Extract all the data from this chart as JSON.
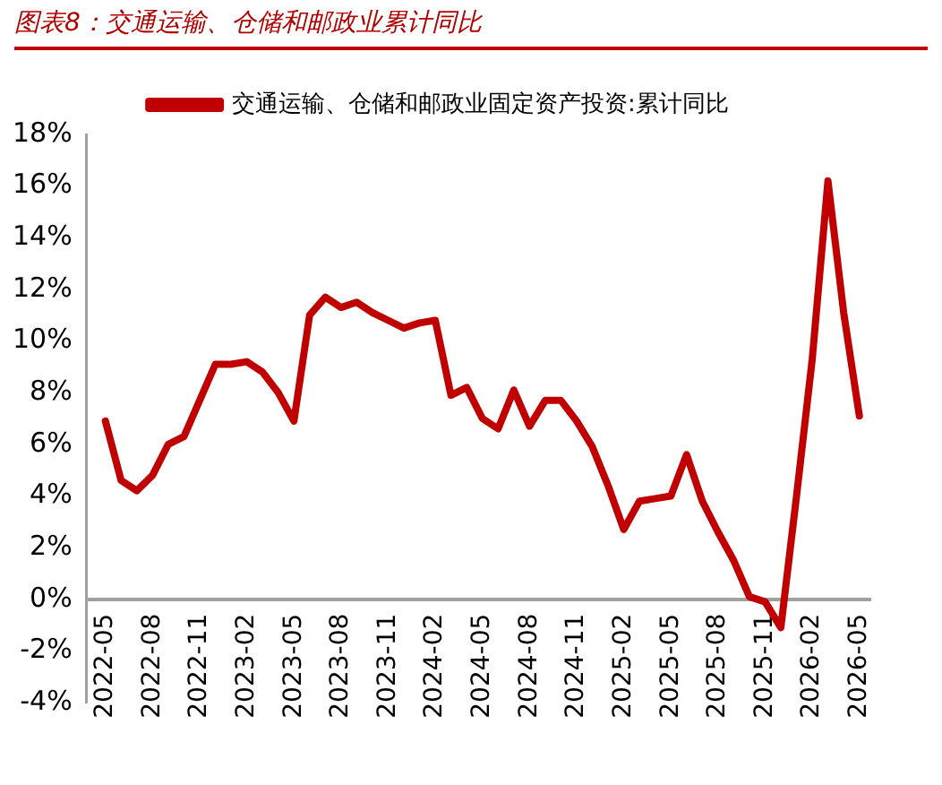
{
  "chart_data": {
    "type": "line",
    "title": "图表8：交通运输、仓储和邮政业累计同比",
    "categories": [
      "2022-05",
      null,
      null,
      "2022-08",
      null,
      null,
      "2022-11",
      null,
      null,
      "2023-02",
      null,
      null,
      "2023-05",
      null,
      null,
      "2023-08",
      null,
      null,
      "2023-11",
      null,
      null,
      "2024-02",
      null,
      null,
      "2024-05",
      null,
      null,
      "2024-08",
      null,
      null,
      "2024-11",
      null,
      null,
      "2025-02",
      null,
      null,
      "2025-05",
      null,
      null,
      "2025-08",
      null,
      null,
      "2025-11",
      null,
      null,
      "2026-02",
      null,
      null,
      "2026-05"
    ],
    "series": [
      {
        "name": "交通运输、仓储和邮政业固定资产投资:累计同比",
        "color": "#c00000",
        "values": [
          6.9,
          4.6,
          4.2,
          4.8,
          6.0,
          6.3,
          7.7,
          9.1,
          9.1,
          9.2,
          8.8,
          8.0,
          6.9,
          11.0,
          11.7,
          11.3,
          11.5,
          11.1,
          10.8,
          10.5,
          10.7,
          10.8,
          7.9,
          8.2,
          7.0,
          6.6,
          8.1,
          6.7,
          7.7,
          7.7,
          6.9,
          5.9,
          4.4,
          2.7,
          3.8,
          3.9,
          4.0,
          5.6,
          3.8,
          2.6,
          1.5,
          0.1,
          -0.1,
          -1.1,
          4.0,
          9.3,
          16.2,
          11.1,
          7.1
        ]
      }
    ],
    "ylim": [
      -4,
      18
    ],
    "yticks": [
      {
        "value": -4,
        "label": "-4%"
      },
      {
        "value": -2,
        "label": "-2%"
      },
      {
        "value": 0,
        "label": "0%"
      },
      {
        "value": 2,
        "label": "2%"
      },
      {
        "value": 4,
        "label": "4%"
      },
      {
        "value": 6,
        "label": "6%"
      },
      {
        "value": 8,
        "label": "8%"
      },
      {
        "value": 10,
        "label": "10%"
      },
      {
        "value": 12,
        "label": "12%"
      },
      {
        "value": 14,
        "label": "14%"
      },
      {
        "value": 16,
        "label": "16%"
      },
      {
        "value": 18,
        "label": "18%"
      }
    ],
    "grid": false,
    "legend": "top",
    "marker": "none",
    "line_style": "solid"
  }
}
